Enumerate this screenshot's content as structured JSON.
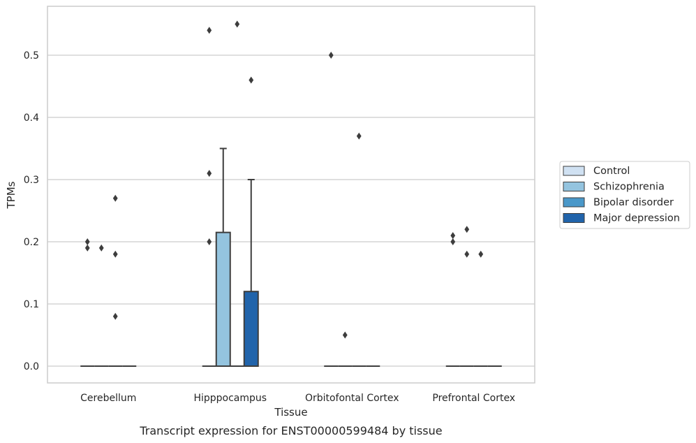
{
  "chart_data": {
    "type": "box",
    "xlabel": "Tissue",
    "ylabel": "TPMs",
    "caption": "Transcript expression for ENST00000599484 by tissue",
    "ylim": [
      -0.027,
      0.582
    ],
    "yticks": [
      0.0,
      0.1,
      0.2,
      0.3,
      0.4,
      0.5
    ],
    "ytick_labels": [
      "0.0",
      "0.1",
      "0.2",
      "0.3",
      "0.4",
      "0.5"
    ],
    "categories": [
      "Cerebellum",
      "Hipppocampus",
      "Orbitofontal Cortex",
      "Prefrontal Cortex"
    ],
    "grid": "horizontal",
    "legend_position": "right",
    "series": [
      {
        "name": "Control",
        "color": "#d0e1f2",
        "boxes": [
          {
            "q1": 0,
            "median": 0,
            "q3": 0,
            "whisker_low": 0,
            "whisker_high": 0,
            "outliers": [
              0.19,
              0.2
            ]
          },
          {
            "q1": 0,
            "median": 0,
            "q3": 0,
            "whisker_low": 0,
            "whisker_high": 0,
            "outliers": [
              0.2,
              0.31,
              0.54
            ]
          },
          {
            "q1": 0,
            "median": 0,
            "q3": 0,
            "whisker_low": 0,
            "whisker_high": 0,
            "outliers": [
              0.5
            ]
          },
          {
            "q1": 0,
            "median": 0,
            "q3": 0,
            "whisker_low": 0,
            "whisker_high": 0,
            "outliers": [
              0.2,
              0.21
            ]
          }
        ]
      },
      {
        "name": "Schizophrenia",
        "color": "#94c4df",
        "boxes": [
          {
            "q1": 0,
            "median": 0,
            "q3": 0,
            "whisker_low": 0,
            "whisker_high": 0,
            "outliers": [
              0.19
            ]
          },
          {
            "q1": 0,
            "median": 0,
            "q3": 0.215,
            "whisker_low": 0,
            "whisker_high": 0.35,
            "outliers": []
          },
          {
            "q1": 0,
            "median": 0,
            "q3": 0,
            "whisker_low": 0,
            "whisker_high": 0,
            "outliers": [
              0.05
            ]
          },
          {
            "q1": 0,
            "median": 0,
            "q3": 0,
            "whisker_low": 0,
            "whisker_high": 0,
            "outliers": [
              0.22,
              0.18
            ]
          }
        ]
      },
      {
        "name": "Bipolar disorder",
        "color": "#4a98c9",
        "boxes": [
          {
            "q1": 0,
            "median": 0,
            "q3": 0,
            "whisker_low": 0,
            "whisker_high": 0,
            "outliers": [
              0.27,
              0.18,
              0.08
            ]
          },
          {
            "q1": 0,
            "median": 0,
            "q3": 0,
            "whisker_low": 0,
            "whisker_high": 0,
            "outliers": [
              0.55
            ]
          },
          {
            "q1": 0,
            "median": 0,
            "q3": 0,
            "whisker_low": 0,
            "whisker_high": 0,
            "outliers": [
              0.37
            ]
          },
          {
            "q1": 0,
            "median": 0,
            "q3": 0,
            "whisker_low": 0,
            "whisker_high": 0,
            "outliers": [
              0.18
            ]
          }
        ]
      },
      {
        "name": "Major depression",
        "color": "#2164ab",
        "boxes": [
          {
            "q1": 0,
            "median": 0,
            "q3": 0,
            "whisker_low": 0,
            "whisker_high": 0,
            "outliers": []
          },
          {
            "q1": 0,
            "median": 0,
            "q3": 0.12,
            "whisker_low": 0,
            "whisker_high": 0.3,
            "outliers": [
              0.46
            ]
          },
          {
            "q1": 0,
            "median": 0,
            "q3": 0,
            "whisker_low": 0,
            "whisker_high": 0,
            "outliers": []
          },
          {
            "q1": 0,
            "median": 0,
            "q3": 0,
            "whisker_low": 0,
            "whisker_high": 0,
            "outliers": []
          }
        ]
      }
    ]
  }
}
